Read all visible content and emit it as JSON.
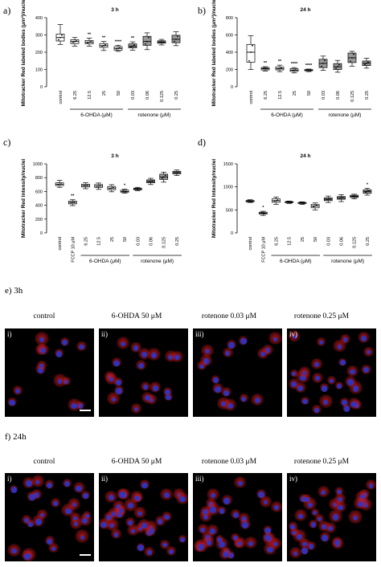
{
  "panel_labels": {
    "a": "a)",
    "b": "b)",
    "c": "c)",
    "d": "d)",
    "e": "e) 3h",
    "f": "f) 24h"
  },
  "micro_columns": [
    "control",
    "6-OHDA 50 μM",
    "rotenone 0.03 μM",
    "rotenone 0.25 μM"
  ],
  "micro_romans": [
    "i)",
    "ii)",
    "iii)",
    "iv)"
  ],
  "colors": {
    "box_white": "#ffffff",
    "box_grey": "#9a9a9a",
    "nucleus": "#2b35c8",
    "mito": "#c8191e"
  },
  "chart_data": [
    {
      "type": "box",
      "title": "3 h",
      "ylabel": "Mitotracker Red labeled bodies (μm²)/nuclei",
      "ylim": [
        0,
        400
      ],
      "yticks": [
        "0",
        "100",
        "200",
        "300",
        "400"
      ],
      "categories": [
        "control",
        "6.25",
        "12.5",
        "25",
        "50",
        "0.03",
        "0.06",
        "0.125",
        "0.25"
      ],
      "groups": [
        {
          "label": "6-OHDA (μM)",
          "from": 1,
          "to": 4
        },
        {
          "label": "rotenone (μM)",
          "from": 5,
          "to": 8
        }
      ],
      "boxes": [
        {
          "min": 245,
          "q1": 265,
          "med": 285,
          "q3": 305,
          "max": 360,
          "fill": "white",
          "sig": ""
        },
        {
          "min": 235,
          "q1": 250,
          "med": 262,
          "q3": 272,
          "max": 285,
          "fill": "white",
          "sig": ""
        },
        {
          "min": 235,
          "q1": 248,
          "med": 258,
          "q3": 268,
          "max": 282,
          "fill": "white",
          "sig": "**"
        },
        {
          "min": 210,
          "q1": 228,
          "med": 238,
          "q3": 250,
          "max": 262,
          "fill": "white",
          "sig": "**"
        },
        {
          "min": 205,
          "q1": 212,
          "med": 222,
          "q3": 232,
          "max": 240,
          "fill": "white",
          "sig": "****"
        },
        {
          "min": 212,
          "q1": 225,
          "med": 235,
          "q3": 248,
          "max": 260,
          "fill": "grey",
          "sig": "**"
        },
        {
          "min": 215,
          "q1": 240,
          "med": 262,
          "q3": 292,
          "max": 312,
          "fill": "grey",
          "sig": ""
        },
        {
          "min": 242,
          "q1": 252,
          "med": 258,
          "q3": 266,
          "max": 274,
          "fill": "grey",
          "sig": ""
        },
        {
          "min": 238,
          "q1": 255,
          "med": 275,
          "q3": 298,
          "max": 318,
          "fill": "grey",
          "sig": ""
        }
      ]
    },
    {
      "type": "box",
      "title": "24 h",
      "ylabel": "Mitotracker Red labeled bodies (μm²)/nuclei",
      "ylim": [
        0,
        800
      ],
      "yticks": [
        "0",
        "200",
        "400",
        "600",
        "800"
      ],
      "categories": [
        "control",
        "6.25",
        "12.5",
        "25",
        "50",
        "0.03",
        "0.06",
        "0.125",
        "0.25"
      ],
      "groups": [
        {
          "label": "6-OHDA (μM)",
          "from": 1,
          "to": 4
        },
        {
          "label": "rotenone (μM)",
          "from": 5,
          "to": 8
        }
      ],
      "boxes": [
        {
          "min": 200,
          "q1": 285,
          "med": 400,
          "q3": 490,
          "max": 590,
          "fill": "white",
          "sig": ""
        },
        {
          "min": 182,
          "q1": 195,
          "med": 210,
          "q3": 222,
          "max": 232,
          "fill": "white",
          "sig": "**"
        },
        {
          "min": 175,
          "q1": 195,
          "med": 210,
          "q3": 230,
          "max": 250,
          "fill": "white",
          "sig": "**"
        },
        {
          "min": 160,
          "q1": 178,
          "med": 192,
          "q3": 210,
          "max": 222,
          "fill": "white",
          "sig": "****"
        },
        {
          "min": 175,
          "q1": 185,
          "med": 192,
          "q3": 200,
          "max": 205,
          "fill": "white",
          "sig": "****"
        },
        {
          "min": 190,
          "q1": 222,
          "med": 270,
          "q3": 318,
          "max": 355,
          "fill": "grey",
          "sig": ""
        },
        {
          "min": 168,
          "q1": 200,
          "med": 232,
          "q3": 268,
          "max": 305,
          "fill": "grey",
          "sig": ""
        },
        {
          "min": 238,
          "q1": 280,
          "med": 335,
          "q3": 390,
          "max": 410,
          "fill": "grey",
          "sig": ""
        },
        {
          "min": 215,
          "q1": 245,
          "med": 272,
          "q3": 298,
          "max": 330,
          "fill": "grey",
          "sig": ""
        }
      ]
    },
    {
      "type": "box",
      "title": "3 h",
      "ylabel": "Mitotracker Red Intensity/nuclei",
      "ylim": [
        0,
        1000
      ],
      "yticks": [
        "0",
        "200",
        "400",
        "600",
        "800",
        "1000"
      ],
      "categories": [
        "control",
        "FCCP 10 μM",
        "6.25",
        "12.5",
        "25",
        "50",
        "0.03",
        "0.06",
        "0.125",
        "0.25"
      ],
      "groups": [
        {
          "label": "6-OHDA (μM)",
          "from": 2,
          "to": 5
        },
        {
          "label": "rotenone (μM)",
          "from": 6,
          "to": 9
        }
      ],
      "boxes": [
        {
          "min": 660,
          "q1": 685,
          "med": 705,
          "q3": 725,
          "max": 760,
          "fill": "white",
          "sig": ""
        },
        {
          "min": 395,
          "q1": 420,
          "med": 440,
          "q3": 460,
          "max": 480,
          "fill": "white",
          "sig": "**"
        },
        {
          "min": 640,
          "q1": 665,
          "med": 685,
          "q3": 705,
          "max": 725,
          "fill": "white",
          "sig": ""
        },
        {
          "min": 630,
          "q1": 658,
          "med": 678,
          "q3": 700,
          "max": 722,
          "fill": "white",
          "sig": ""
        },
        {
          "min": 595,
          "q1": 625,
          "med": 648,
          "q3": 672,
          "max": 698,
          "fill": "white",
          "sig": ""
        },
        {
          "min": 575,
          "q1": 590,
          "med": 600,
          "q3": 618,
          "max": 632,
          "fill": "white",
          "sig": "*"
        },
        {
          "min": 610,
          "q1": 625,
          "med": 635,
          "q3": 648,
          "max": 660,
          "fill": "grey",
          "sig": ""
        },
        {
          "min": 700,
          "q1": 725,
          "med": 745,
          "q3": 768,
          "max": 790,
          "fill": "grey",
          "sig": ""
        },
        {
          "min": 735,
          "q1": 775,
          "med": 810,
          "q3": 850,
          "max": 880,
          "fill": "grey",
          "sig": ""
        },
        {
          "min": 830,
          "q1": 855,
          "med": 872,
          "q3": 892,
          "max": 910,
          "fill": "grey",
          "sig": ""
        }
      ]
    },
    {
      "type": "box",
      "title": "24 h",
      "ylabel": "Mitotracker Red Intensity/nuclei",
      "ylim": [
        0,
        1500
      ],
      "yticks": [
        "0",
        "500",
        "1000",
        "1500"
      ],
      "categories": [
        "control",
        "FCCP 10 μM",
        "6.25",
        "12.5",
        "25",
        "50",
        "0.03",
        "0.06",
        "0.125",
        "0.25"
      ],
      "groups": [
        {
          "label": "6-OHDA (μM)",
          "from": 2,
          "to": 5
        },
        {
          "label": "rotenone (μM)",
          "from": 6,
          "to": 9
        }
      ],
      "boxes": [
        {
          "min": 660,
          "q1": 675,
          "med": 690,
          "q3": 705,
          "max": 720,
          "fill": "white",
          "sig": ""
        },
        {
          "min": 380,
          "q1": 410,
          "med": 430,
          "q3": 450,
          "max": 470,
          "fill": "white",
          "sig": "*"
        },
        {
          "min": 620,
          "q1": 665,
          "med": 700,
          "q3": 740,
          "max": 780,
          "fill": "white",
          "sig": ""
        },
        {
          "min": 640,
          "q1": 655,
          "med": 668,
          "q3": 680,
          "max": 692,
          "fill": "white",
          "sig": ""
        },
        {
          "min": 620,
          "q1": 638,
          "med": 650,
          "q3": 662,
          "max": 675,
          "fill": "white",
          "sig": ""
        },
        {
          "min": 500,
          "q1": 545,
          "med": 585,
          "q3": 620,
          "max": 650,
          "fill": "white",
          "sig": ""
        },
        {
          "min": 660,
          "q1": 700,
          "med": 730,
          "q3": 762,
          "max": 800,
          "fill": "grey",
          "sig": ""
        },
        {
          "min": 680,
          "q1": 730,
          "med": 760,
          "q3": 790,
          "max": 830,
          "fill": "grey",
          "sig": ""
        },
        {
          "min": 740,
          "q1": 770,
          "med": 795,
          "q3": 818,
          "max": 840,
          "fill": "grey",
          "sig": ""
        },
        {
          "min": 820,
          "q1": 860,
          "med": 900,
          "q3": 935,
          "max": 970,
          "fill": "grey",
          "sig": "*"
        }
      ]
    }
  ]
}
